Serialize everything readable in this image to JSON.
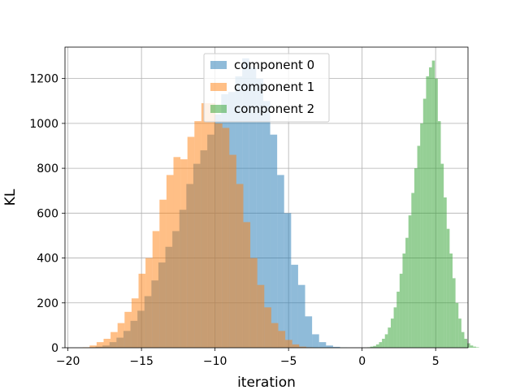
{
  "chart_data": {
    "type": "histogram",
    "title": "",
    "xlabel": "iteration",
    "ylabel": "KL",
    "xlim": [
      -20.2,
      7.2
    ],
    "ylim": [
      0,
      1340
    ],
    "xticks": [
      -20,
      -15,
      -10,
      -5,
      0,
      5
    ],
    "xtick_labels": [
      "−20",
      "−15",
      "−10",
      "−5",
      "0",
      "5"
    ],
    "yticks": [
      0,
      200,
      400,
      600,
      800,
      1000,
      1200
    ],
    "ytick_labels": [
      "0",
      "200",
      "400",
      "600",
      "800",
      "1000",
      "1200"
    ],
    "grid": true,
    "legend_position": "upper-center",
    "series": [
      {
        "name": "component 0",
        "color": "#1f77b4",
        "alpha": 0.5,
        "bin_start": -18.6,
        "bin_width": 0.475,
        "counts": [
          2,
          5,
          10,
          25,
          45,
          75,
          120,
          165,
          230,
          300,
          380,
          450,
          520,
          615,
          730,
          820,
          880,
          950,
          1040,
          1130,
          1140,
          1210,
          1290,
          1250,
          1200,
          1100,
          950,
          770,
          600,
          370,
          280,
          140,
          60,
          25,
          10,
          4,
          1
        ]
      },
      {
        "name": "component 1",
        "color": "#ff7f0e",
        "alpha": 0.5,
        "bin_start": -19.0,
        "bin_width": 0.475,
        "counts": [
          2,
          10,
          25,
          40,
          70,
          110,
          160,
          220,
          330,
          400,
          520,
          660,
          770,
          850,
          840,
          940,
          1010,
          1090,
          1090,
          1000,
          980,
          860,
          730,
          560,
          400,
          280,
          180,
          110,
          75,
          35,
          15,
          5,
          2
        ]
      },
      {
        "name": "component 2",
        "color": "#2ca02c",
        "alpha": 0.5,
        "bin_start": 0.35,
        "bin_width": 0.2,
        "counts": [
          2,
          5,
          8,
          15,
          25,
          40,
          60,
          90,
          130,
          180,
          250,
          330,
          420,
          490,
          590,
          690,
          800,
          900,
          1000,
          1110,
          1210,
          1250,
          1280,
          1200,
          1010,
          820,
          670,
          530,
          420,
          310,
          200,
          130,
          70,
          40,
          20,
          10,
          5,
          2
        ]
      }
    ]
  }
}
